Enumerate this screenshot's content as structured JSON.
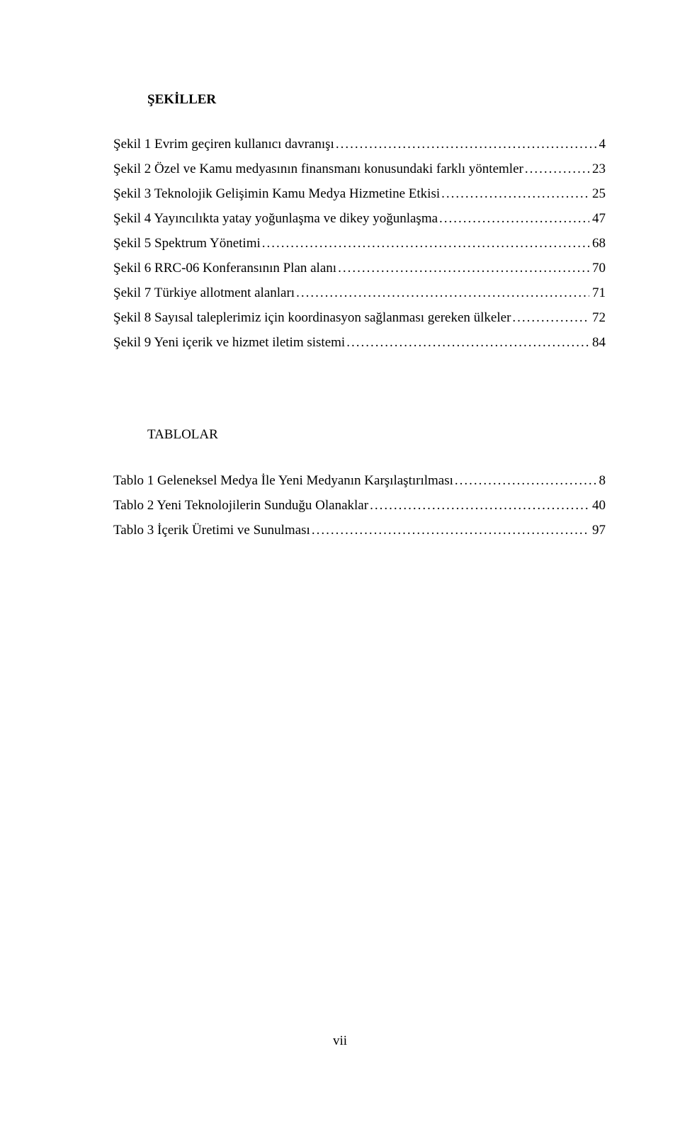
{
  "headings": {
    "sekiller": "ŞEKİLLER",
    "tablolar": "TABLOLAR"
  },
  "sekiller": [
    {
      "text": "Şekil 1 Evrim geçiren kullanıcı davranışı",
      "page": "4"
    },
    {
      "text": "Şekil 2 Özel ve Kamu medyasının finansmanı konusundaki farklı yöntemler",
      "page": "23"
    },
    {
      "text": "Şekil 3 Teknolojik Gelişimin Kamu Medya Hizmetine Etkisi",
      "page": "25"
    },
    {
      "text": "Şekil 4 Yayıncılıkta yatay yoğunlaşma ve dikey yoğunlaşma",
      "page": "47"
    },
    {
      "text": "Şekil 5 Spektrum Yönetimi",
      "page": "68"
    },
    {
      "text": "Şekil 6 RRC-06 Konferansının Plan alanı",
      "page": "70"
    },
    {
      "text": "Şekil 7 Türkiye allotment alanları",
      "page": "71"
    },
    {
      "text": "Şekil 8 Sayısal taleplerimiz için koordinasyon sağlanması gereken ülkeler",
      "page": "72"
    },
    {
      "text": "Şekil 9 Yeni içerik ve hizmet iletim sistemi",
      "page": "84"
    }
  ],
  "tablolar": [
    {
      "text": "Tablo 1 Geleneksel Medya İle Yeni Medyanın Karşılaştırılması",
      "page": "8"
    },
    {
      "text": "Tablo 2 Yeni Teknolojilerin Sunduğu Olanaklar",
      "page": "40"
    },
    {
      "text": "Tablo 3 İçerik Üretimi ve Sunulması",
      "page": "97"
    }
  ],
  "leader_fill": "........................................................................................................................................................................................................",
  "page_number": "vii"
}
